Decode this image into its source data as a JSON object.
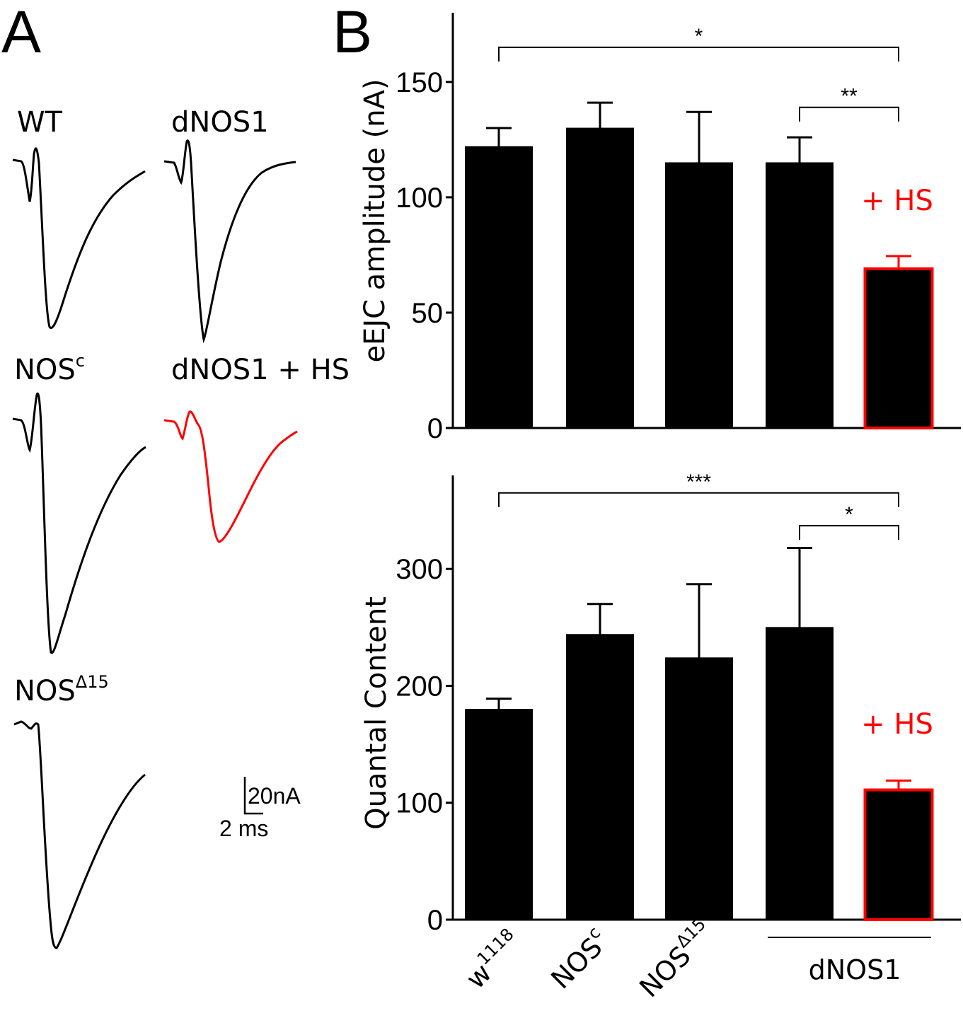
{
  "panel_a": {
    "letter": "A",
    "traces": [
      {
        "label": "WT",
        "sup": "",
        "color": "#000000"
      },
      {
        "label": "dNOS1",
        "sup": "",
        "color": "#000000"
      },
      {
        "label": "NOS",
        "sup": "c",
        "color": "#000000"
      },
      {
        "label": "dNOS1 + HS",
        "sup": "",
        "color": "#ff0000"
      },
      {
        "label": "NOS",
        "sup": "Δ15",
        "color": "#000000"
      }
    ],
    "scale_bar": {
      "current": "20nA",
      "time": "2 ms"
    }
  },
  "panel_b": {
    "letter": "B",
    "group_label": "dNOS1",
    "hs_label": "+ HS",
    "x_labels": [
      {
        "base": "w",
        "sup": "1118"
      },
      {
        "base": "NOS",
        "sup": "c"
      },
      {
        "base": "NOS",
        "sup": "Δ15"
      }
    ]
  },
  "chart_data": [
    {
      "type": "bar",
      "ylabel": "eEJC amplitude (nA)",
      "ylim": [
        0,
        180
      ],
      "yticks": [
        0,
        50,
        100,
        150
      ],
      "categories": [
        "w1118",
        "NOSc",
        "NOSΔ15",
        "dNOS1",
        "dNOS1 + HS"
      ],
      "values": [
        122,
        130,
        115,
        115,
        69
      ],
      "errors": [
        8,
        11,
        22,
        11,
        5.5
      ],
      "bar_colors": [
        "#000000",
        "#000000",
        "#000000",
        "#000000",
        "#000000"
      ],
      "bar_outline": [
        "#000000",
        "#000000",
        "#000000",
        "#000000",
        "#ff0000"
      ],
      "significance": [
        {
          "from": 0,
          "to": 4,
          "label": "*",
          "level": 165
        },
        {
          "from": 3,
          "to": 4,
          "label": "**",
          "level": 139
        }
      ]
    },
    {
      "type": "bar",
      "ylabel": "Quantal Content",
      "ylim": [
        0,
        380
      ],
      "yticks": [
        0,
        100,
        200,
        300
      ],
      "categories": [
        "w1118",
        "NOSc",
        "NOSΔ15",
        "dNOS1",
        "dNOS1 + HS"
      ],
      "values": [
        180,
        244,
        224,
        250,
        111
      ],
      "errors": [
        9,
        26,
        63,
        68,
        8
      ],
      "bar_colors": [
        "#000000",
        "#000000",
        "#000000",
        "#000000",
        "#000000"
      ],
      "bar_outline": [
        "#000000",
        "#000000",
        "#000000",
        "#000000",
        "#ff0000"
      ],
      "significance": [
        {
          "from": 0,
          "to": 4,
          "label": "***",
          "level": 365
        },
        {
          "from": 3,
          "to": 4,
          "label": "*",
          "level": 337
        }
      ]
    }
  ]
}
